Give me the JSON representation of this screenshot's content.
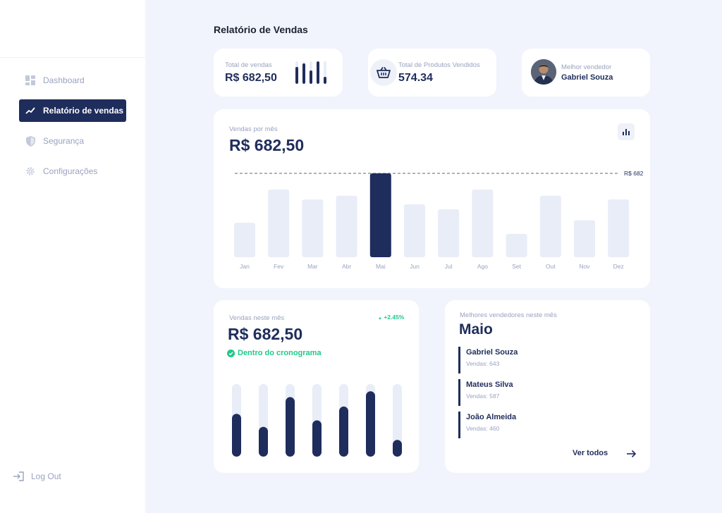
{
  "sidebar": {
    "items": [
      {
        "label": "Dashboard",
        "icon": "dashboard-icon"
      },
      {
        "label": "Relatório de vendas",
        "icon": "trending-up-icon",
        "active": true
      },
      {
        "label": "Segurança",
        "icon": "shield-icon"
      },
      {
        "label": "Configurações",
        "icon": "gear-icon"
      }
    ],
    "logout": "Log Out"
  },
  "page_title": "Relatório de Vendas",
  "kpis": {
    "total_vendas": {
      "label": "Total de vendas",
      "value": "R$ 682,50",
      "mini_bars": [
        0.75,
        0.9,
        0.6,
        1.0,
        0.3
      ]
    },
    "produtos": {
      "label": "Total de Produtos Vendidos",
      "value": "574.34"
    },
    "melhor": {
      "label": "Melhor vendedor",
      "name": "Gabriel Souza"
    }
  },
  "monthly": {
    "label": "Vendas por mês",
    "value": "R$ 682,50",
    "reference_label": "R$ 682",
    "months": [
      "Jan",
      "Fev",
      "Mar",
      "Abr",
      "Mai",
      "Jun",
      "Jul",
      "Ago",
      "Set",
      "Out",
      "Nov",
      "Dez"
    ],
    "values": [
      280,
      550,
      470,
      500,
      682,
      430,
      390,
      550,
      190,
      500,
      300,
      470
    ],
    "highlight_index": 4
  },
  "this_month": {
    "label": "Vendas neste mês",
    "value": "R$ 682,50",
    "change": "+2.45%",
    "status": "Dentro do cronograma",
    "bars": [
      0.59,
      0.41,
      0.82,
      0.5,
      0.69,
      0.9,
      0.23
    ]
  },
  "top_sellers": {
    "label": "Melhores vendedores neste mês",
    "month": "Maio",
    "sales_label": "Vendas:",
    "sellers": [
      {
        "name": "Gabriel Souza",
        "sales": "643"
      },
      {
        "name": "Mateus Silva",
        "sales": "587"
      },
      {
        "name": "João Almeida",
        "sales": "460"
      }
    ],
    "see_all": "Ver todos"
  },
  "colors": {
    "primary": "#1f2d5c",
    "bar_light": "#e9edf7",
    "background": "#f1f4fc",
    "positive": "#1ec98a"
  }
}
